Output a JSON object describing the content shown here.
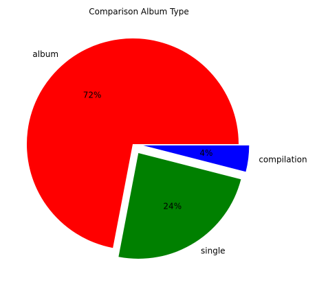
{
  "chart_data": {
    "type": "pie",
    "title": "Comparison Album Type",
    "categories": [
      "album",
      "single",
      "compilation"
    ],
    "values": [
      72,
      24,
      4
    ],
    "percent_labels": [
      "72%",
      "24%",
      "4%"
    ],
    "colors": [
      "#ff0000",
      "#008000",
      "#0000ff"
    ],
    "exploded": [
      false,
      true,
      true
    ],
    "start_angle_deg": 0,
    "direction": "counterclockwise",
    "legend": "none"
  }
}
